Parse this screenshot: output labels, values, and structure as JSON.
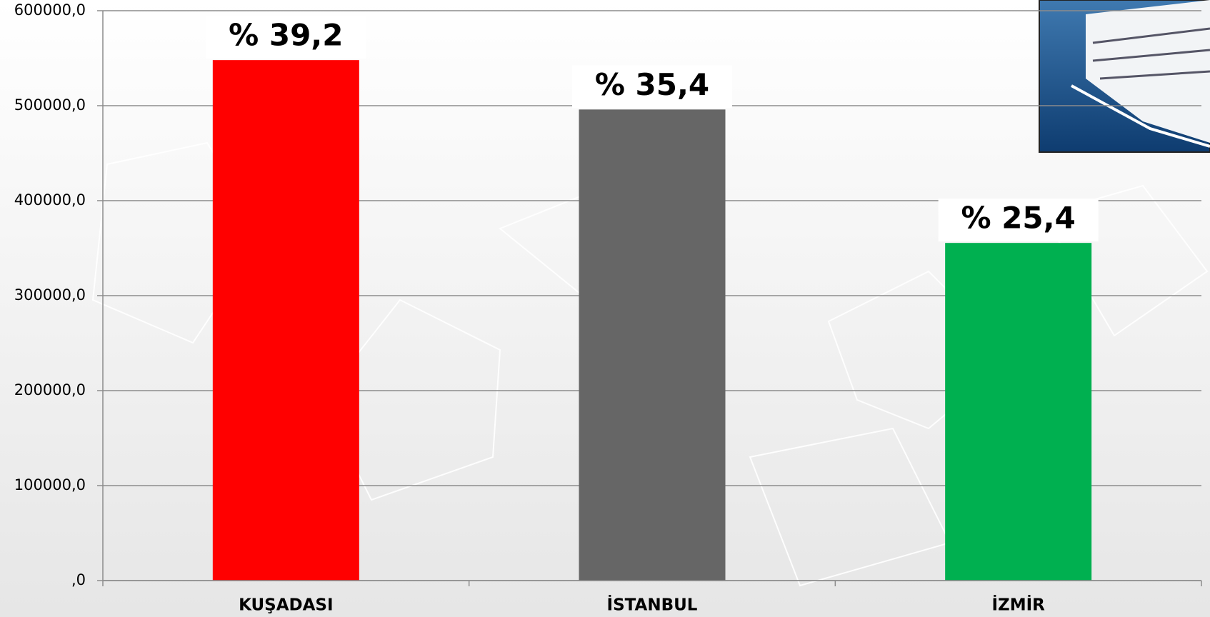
{
  "chart_data": {
    "type": "bar",
    "categories": [
      "KUŞADASI",
      "İSTANBUL",
      "İZMİR"
    ],
    "values": [
      548000,
      496000,
      355500
    ],
    "colors": [
      "#ff0000",
      "#666666",
      "#00b050"
    ],
    "annotations": [
      "% 39,2",
      "% 35,4",
      "% 25,4"
    ],
    "ylim": [
      0,
      600000
    ],
    "yticks": [
      {
        "value": 0,
        "label": ",0"
      },
      {
        "value": 100000,
        "label": "100000,0"
      },
      {
        "value": 200000,
        "label": "200000,0"
      },
      {
        "value": 300000,
        "label": "300000,0"
      },
      {
        "value": 400000,
        "label": "400000,0"
      },
      {
        "value": 500000,
        "label": "500000,0"
      },
      {
        "value": 600000,
        "label": "600000,0"
      }
    ],
    "grid": true
  }
}
